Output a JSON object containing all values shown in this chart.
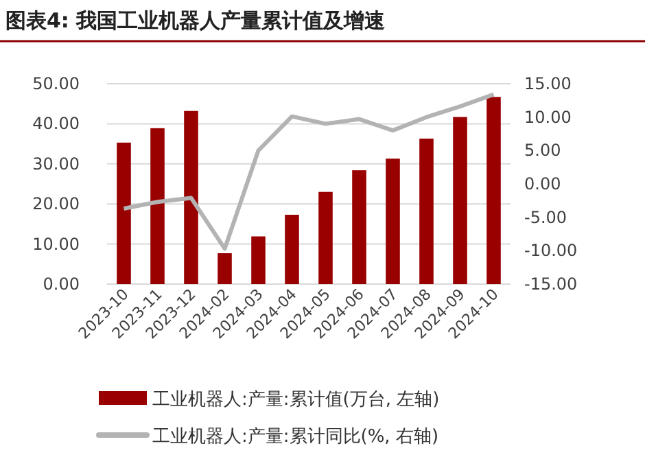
{
  "chart_data": {
    "type": "bar",
    "title": "图表4:  我国工业机器人产量累计值及增速",
    "categories": [
      "2023-10",
      "2023-11",
      "2023-12",
      "2024-02",
      "2024-03",
      "2024-04",
      "2024-05",
      "2024-06",
      "2024-07",
      "2024-08",
      "2024-09",
      "2024-10"
    ],
    "series": [
      {
        "name": "工业机器人:产量:累计值(万台, 左轴)",
        "color": "#990000",
        "values": [
          35.3,
          38.9,
          43.2,
          7.7,
          11.9,
          17.3,
          23.0,
          28.4,
          31.3,
          36.3,
          41.7,
          46.7
        ]
      },
      {
        "name": "工业机器人:产量:累计同比(%, 右轴)",
        "color": "#b3b3b3",
        "type": "line",
        "axis": "y2",
        "values": [
          -3.7,
          -2.7,
          -2.1,
          -9.7,
          5.0,
          10.1,
          9.0,
          9.7,
          8.0,
          10.0,
          11.6,
          13.4
        ]
      }
    ],
    "ylim": [
      0,
      50
    ],
    "yticks": [
      {
        "value": 0,
        "label": "0.00"
      },
      {
        "value": 10,
        "label": "10.00"
      },
      {
        "value": 20,
        "label": "20.00"
      },
      {
        "value": 30,
        "label": "30.00"
      },
      {
        "value": 40,
        "label": "40.00"
      },
      {
        "value": 50,
        "label": "50.00"
      }
    ],
    "y2lim": [
      -15,
      15
    ],
    "y2ticks": [
      {
        "value": -15,
        "label": "-15.00"
      },
      {
        "value": -10,
        "label": "-10.00"
      },
      {
        "value": -5,
        "label": "-5.00"
      },
      {
        "value": 0,
        "label": "0.00"
      },
      {
        "value": 5,
        "label": "5.00"
      },
      {
        "value": 10,
        "label": "10.00"
      },
      {
        "value": 15,
        "label": "15.00"
      }
    ],
    "grid": "y",
    "legend": "bottom"
  }
}
